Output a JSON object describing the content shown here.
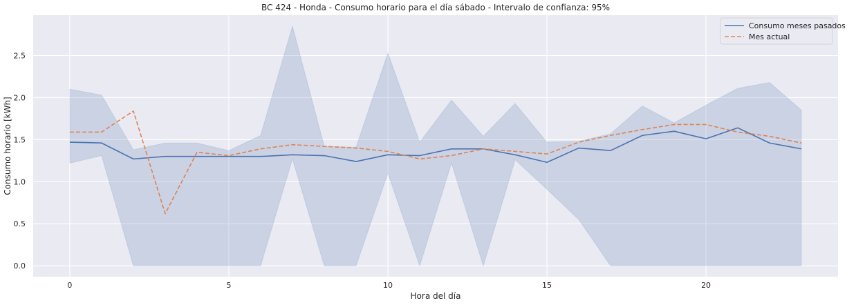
{
  "chart_data": {
    "type": "line",
    "title": "BC 424 - Honda - Consumo horario para el día sábado - Intervalo de confianza: 95%",
    "xlabel": "Hora del día",
    "ylabel": "Consumo horario [kWh]",
    "xlim": [
      -1.15,
      24.15
    ],
    "ylim": [
      -0.13,
      2.98
    ],
    "xticks": [
      0,
      5,
      10,
      15,
      20
    ],
    "yticks": [
      0.0,
      0.5,
      1.0,
      1.5,
      2.0,
      2.5
    ],
    "ytick_labels": [
      "0.0",
      "0.5",
      "1.0",
      "1.5",
      "2.0",
      "2.5"
    ],
    "grid": true,
    "legend_position": "top-right",
    "x": [
      0,
      1,
      2,
      3,
      4,
      5,
      6,
      7,
      8,
      9,
      10,
      11,
      12,
      13,
      14,
      15,
      16,
      17,
      18,
      19,
      20,
      21,
      22,
      23
    ],
    "series": [
      {
        "name": "Consumo meses pasados",
        "style": "solid",
        "color": "#4c72b0",
        "values": [
          1.47,
          1.46,
          1.27,
          1.3,
          1.3,
          1.3,
          1.3,
          1.32,
          1.31,
          1.24,
          1.32,
          1.31,
          1.39,
          1.39,
          1.32,
          1.23,
          1.4,
          1.37,
          1.55,
          1.6,
          1.51,
          1.64,
          1.46,
          1.39
        ],
        "ci_lower": [
          1.22,
          1.31,
          0.0,
          0.0,
          0.0,
          0.0,
          0.0,
          1.27,
          0.0,
          0.0,
          1.1,
          0.0,
          1.22,
          0.0,
          1.26,
          0.91,
          0.55,
          0.0,
          0.0,
          0.0,
          0.0,
          0.0,
          0.0,
          0.0
        ],
        "ci_upper": [
          2.1,
          2.03,
          1.38,
          1.46,
          1.46,
          1.37,
          1.55,
          2.85,
          1.42,
          1.41,
          2.53,
          1.47,
          1.97,
          1.54,
          1.93,
          1.47,
          1.48,
          1.57,
          1.9,
          1.7,
          1.91,
          2.11,
          2.18,
          1.85
        ]
      },
      {
        "name": "Mes actual",
        "style": "dashed",
        "color": "#dd8452",
        "values": [
          1.59,
          1.59,
          1.84,
          0.62,
          1.35,
          1.31,
          1.39,
          1.44,
          1.42,
          1.4,
          1.36,
          1.27,
          1.31,
          1.39,
          1.36,
          1.33,
          1.47,
          1.55,
          1.62,
          1.68,
          1.68,
          1.59,
          1.54,
          1.46
        ]
      }
    ],
    "colors": {
      "plot_background": "#eaeaf2",
      "grid": "#ffffff",
      "ci_fill": "#4c72b0"
    }
  }
}
